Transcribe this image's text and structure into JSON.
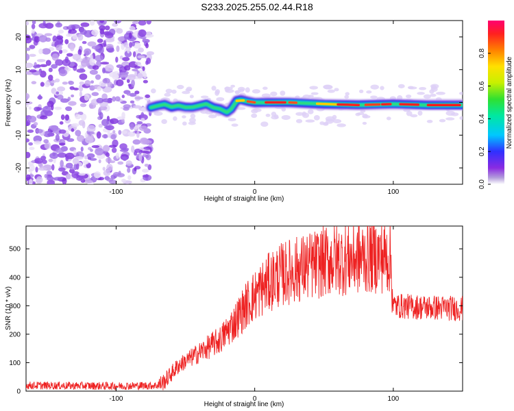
{
  "title": "S233.2025.255.02.44.R18",
  "chart_data": [
    {
      "type": "heatmap",
      "name": "spectrogram",
      "xlabel": "Height of straight line (km)",
      "ylabel": "Frequency (Hz)",
      "xlim": [
        -165,
        150
      ],
      "ylim": [
        -25,
        25
      ],
      "x_ticks": [
        -100,
        0,
        100
      ],
      "y_ticks": [
        -20,
        -10,
        0,
        10,
        20
      ],
      "colorbar": {
        "label": "Normalized spectral amplitude",
        "range": [
          0.0,
          1.0
        ],
        "ticks": [
          0.0,
          0.2,
          0.4,
          0.6,
          0.8
        ]
      },
      "noise_region_x": [
        -165,
        -75
      ],
      "signal_track": [
        {
          "x": -75,
          "freq": -1.5
        },
        {
          "x": -70,
          "freq": -1.0
        },
        {
          "x": -65,
          "freq": -0.5
        },
        {
          "x": -60,
          "freq": -1.5
        },
        {
          "x": -55,
          "freq": -1.0
        },
        {
          "x": -50,
          "freq": -1.5
        },
        {
          "x": -45,
          "freq": -1.5
        },
        {
          "x": -40,
          "freq": -1.0
        },
        {
          "x": -35,
          "freq": -0.5
        },
        {
          "x": -30,
          "freq": -1.5
        },
        {
          "x": -25,
          "freq": -2.0
        },
        {
          "x": -20,
          "freq": -3.0
        },
        {
          "x": -17,
          "freq": -2.0
        },
        {
          "x": -13,
          "freq": 0.5
        },
        {
          "x": -10,
          "freq": 0.8
        },
        {
          "x": -5,
          "freq": 0.3
        },
        {
          "x": 0,
          "freq": 0.0
        },
        {
          "x": 10,
          "freq": 0.0
        },
        {
          "x": 25,
          "freq": 0.0
        },
        {
          "x": 50,
          "freq": -0.5
        },
        {
          "x": 75,
          "freq": -0.8
        },
        {
          "x": 100,
          "freq": -0.5
        },
        {
          "x": 125,
          "freq": -0.8
        },
        {
          "x": 150,
          "freq": -0.8
        }
      ]
    },
    {
      "type": "line",
      "name": "snr",
      "xlabel": "Height of straight line (km)",
      "ylabel": "SNR (10 * v/v)",
      "xlim": [
        -165,
        150
      ],
      "ylim": [
        0,
        580
      ],
      "x_ticks": [
        -100,
        0,
        100
      ],
      "y_ticks": [
        0,
        100,
        200,
        300,
        400,
        500
      ],
      "color": "#ee2222",
      "trend": [
        {
          "x": -165,
          "y": 20
        },
        {
          "x": -100,
          "y": 18
        },
        {
          "x": -70,
          "y": 20
        },
        {
          "x": -65,
          "y": 35
        },
        {
          "x": -55,
          "y": 90
        },
        {
          "x": -45,
          "y": 120
        },
        {
          "x": -35,
          "y": 150
        },
        {
          "x": -25,
          "y": 180
        },
        {
          "x": -15,
          "y": 240
        },
        {
          "x": -5,
          "y": 310
        },
        {
          "x": 5,
          "y": 360
        },
        {
          "x": 15,
          "y": 400
        },
        {
          "x": 25,
          "y": 420
        },
        {
          "x": 40,
          "y": 440
        },
        {
          "x": 55,
          "y": 460
        },
        {
          "x": 70,
          "y": 465
        },
        {
          "x": 85,
          "y": 475
        },
        {
          "x": 98,
          "y": 470
        },
        {
          "x": 100,
          "y": 300
        },
        {
          "x": 120,
          "y": 295
        },
        {
          "x": 150,
          "y": 290
        }
      ]
    }
  ]
}
